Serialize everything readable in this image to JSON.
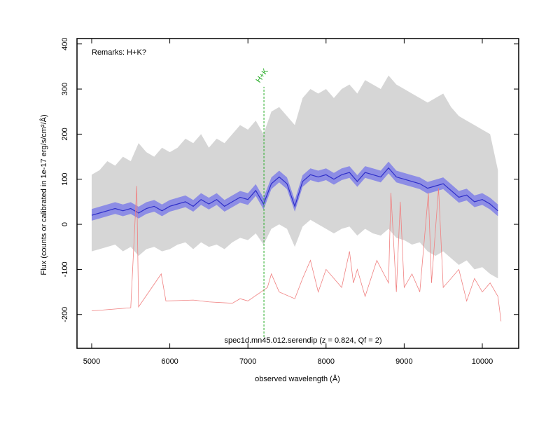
{
  "chart_data": {
    "type": "line",
    "remarks": "Remarks: H+K?",
    "caption": "spec1d.mn45.012.serendip (z = 0.824, Qf = 2)",
    "x_label": "observed wavelength (Å)",
    "y_label": "Flux (counts or calibrated in 1e-17 erg/s/cm²/Å)",
    "xlim": [
      4812,
      10466
    ],
    "ylim": [
      -275,
      412
    ],
    "xticks": [
      5000,
      6000,
      7000,
      8000,
      9000,
      10000
    ],
    "yticks": [
      -200,
      -100,
      0,
      100,
      200,
      300,
      400
    ],
    "x": [
      5000,
      5100,
      5200,
      5300,
      5400,
      5500,
      5600,
      5700,
      5800,
      5900,
      6000,
      6100,
      6200,
      6300,
      6400,
      6500,
      6600,
      6700,
      6800,
      6900,
      7000,
      7100,
      7200,
      7300,
      7400,
      7500,
      7600,
      7700,
      7800,
      7900,
      8000,
      8100,
      8200,
      8300,
      8400,
      8500,
      8600,
      8700,
      8800,
      8900,
      9000,
      9100,
      9200,
      9300,
      9400,
      9500,
      9600,
      9700,
      9800,
      9900,
      10000,
      10100,
      10200
    ],
    "bands": [
      {
        "color": "#cfcfcf",
        "lower": [
          -60,
          -55,
          -50,
          -45,
          -60,
          -50,
          -70,
          -55,
          -50,
          -60,
          -55,
          -45,
          -40,
          -55,
          -40,
          -50,
          -45,
          -55,
          -40,
          -30,
          -35,
          -20,
          -45,
          -10,
          0,
          -10,
          -50,
          -5,
          10,
          0,
          -10,
          -20,
          -10,
          -5,
          -25,
          -10,
          -20,
          -25,
          -10,
          -30,
          -35,
          -45,
          -40,
          -60,
          -70,
          -60,
          -75,
          -90,
          -80,
          -100,
          -95,
          -110,
          -120
        ],
        "upper": [
          110,
          120,
          140,
          130,
          150,
          140,
          180,
          160,
          150,
          170,
          160,
          170,
          190,
          180,
          200,
          170,
          190,
          180,
          200,
          220,
          210,
          230,
          200,
          250,
          260,
          240,
          220,
          280,
          300,
          290,
          300,
          280,
          300,
          310,
          290,
          320,
          310,
          300,
          330,
          310,
          300,
          290,
          280,
          270,
          280,
          290,
          260,
          240,
          230,
          220,
          210,
          200,
          120
        ]
      },
      {
        "color": "#7b7be8",
        "lower": [
          8,
          13,
          18,
          23,
          18,
          23,
          13,
          23,
          28,
          18,
          28,
          33,
          38,
          28,
          43,
          33,
          43,
          28,
          38,
          48,
          43,
          63,
          33,
          78,
          93,
          78,
          28,
          83,
          98,
          93,
          98,
          88,
          98,
          103,
          83,
          103,
          98,
          93,
          113,
          93,
          88,
          83,
          78,
          68,
          73,
          78,
          63,
          48,
          53,
          38,
          43,
          33,
          18
        ],
        "upper": [
          34,
          39,
          44,
          49,
          44,
          49,
          39,
          49,
          54,
          44,
          54,
          59,
          64,
          54,
          69,
          59,
          69,
          54,
          64,
          74,
          69,
          89,
          59,
          104,
          119,
          104,
          54,
          109,
          124,
          119,
          124,
          114,
          124,
          129,
          109,
          129,
          124,
          119,
          139,
          119,
          114,
          109,
          104,
          94,
          99,
          104,
          89,
          74,
          79,
          64,
          69,
          59,
          44
        ]
      }
    ],
    "series": [
      {
        "color": "#2f2fc8",
        "values": [
          20,
          25,
          30,
          35,
          30,
          35,
          25,
          35,
          40,
          30,
          40,
          45,
          50,
          40,
          55,
          45,
          55,
          40,
          50,
          60,
          55,
          75,
          45,
          90,
          105,
          90,
          40,
          95,
          110,
          105,
          110,
          100,
          110,
          115,
          95,
          115,
          110,
          105,
          125,
          105,
          100,
          95,
          90,
          80,
          85,
          90,
          75,
          60,
          65,
          50,
          55,
          45,
          30
        ]
      },
      {
        "color": "#f08080",
        "x": [
          5000,
          5500,
          5577,
          5600,
          5890,
          5950,
          6300,
          6500,
          6800,
          6900,
          7000,
          7250,
          7300,
          7400,
          7600,
          7700,
          7800,
          7900,
          8000,
          8200,
          8300,
          8350,
          8400,
          8500,
          8650,
          8800,
          8830,
          8900,
          8950,
          9000,
          9100,
          9200,
          9310,
          9350,
          9440,
          9500,
          9700,
          9800,
          9900,
          10000,
          10100,
          10200,
          10240
        ],
        "values": [
          -192,
          -185,
          85,
          -183,
          -110,
          -170,
          -168,
          -172,
          -175,
          -165,
          -170,
          -140,
          -110,
          -150,
          -165,
          -120,
          -80,
          -150,
          -100,
          -140,
          -60,
          -130,
          -100,
          -160,
          -80,
          -130,
          70,
          -150,
          50,
          -140,
          -110,
          -150,
          70,
          -130,
          80,
          -140,
          -100,
          -170,
          -120,
          -150,
          -130,
          -160,
          -215
        ]
      }
    ],
    "vlines": [
      {
        "label": "H+K",
        "x": 7205,
        "y": [
          -250,
          305
        ],
        "color": "#22aa22"
      }
    ]
  }
}
